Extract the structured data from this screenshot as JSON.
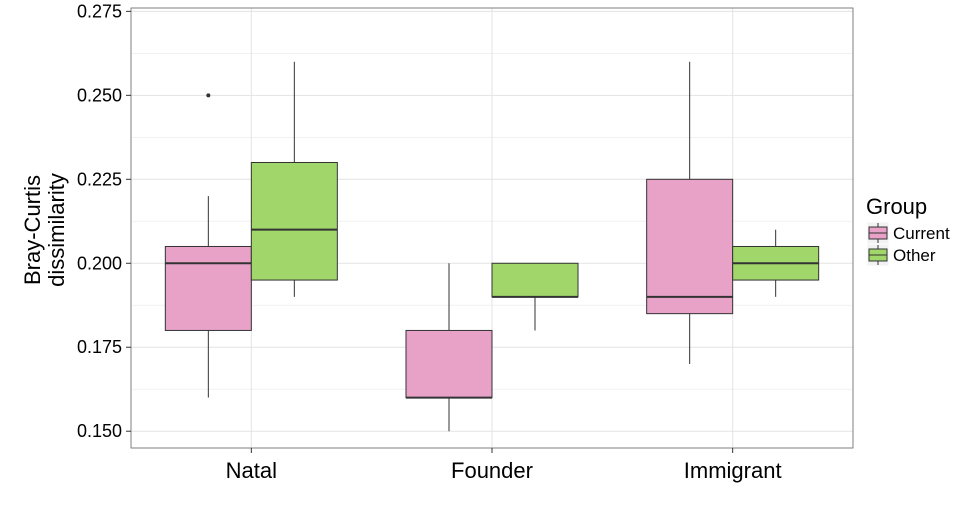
{
  "chart_data": {
    "type": "boxplot",
    "title": "",
    "xlabel": "",
    "ylabel_lines": [
      "Bray-Curtis",
      "dissimilarity"
    ],
    "categories": [
      "Natal",
      "Founder",
      "Immigrant"
    ],
    "ylim": [
      0.145,
      0.276
    ],
    "yticks": [
      0.15,
      0.175,
      0.2,
      0.225,
      0.25,
      0.275
    ],
    "ytick_labels": [
      "0.150",
      "0.175",
      "0.200",
      "0.225",
      "0.250",
      "0.275"
    ],
    "grid": true,
    "legend": {
      "title": "Group",
      "position": "right"
    },
    "series": [
      {
        "name": "Current",
        "color": "#e8a2c7",
        "boxes": [
          {
            "category": "Natal",
            "lower_whisker": 0.16,
            "q1": 0.18,
            "median": 0.2,
            "q3": 0.205,
            "upper_whisker": 0.22,
            "outliers": [
              0.25
            ]
          },
          {
            "category": "Founder",
            "lower_whisker": 0.15,
            "q1": 0.16,
            "median": 0.16,
            "q3": 0.18,
            "upper_whisker": 0.2,
            "outliers": []
          },
          {
            "category": "Immigrant",
            "lower_whisker": 0.17,
            "q1": 0.185,
            "median": 0.19,
            "q3": 0.225,
            "upper_whisker": 0.26,
            "outliers": []
          }
        ]
      },
      {
        "name": "Other",
        "color": "#a1d76a",
        "boxes": [
          {
            "category": "Natal",
            "lower_whisker": 0.19,
            "q1": 0.195,
            "median": 0.21,
            "q3": 0.23,
            "upper_whisker": 0.26,
            "outliers": []
          },
          {
            "category": "Founder",
            "lower_whisker": 0.18,
            "q1": 0.19,
            "median": 0.19,
            "q3": 0.2,
            "upper_whisker": 0.2,
            "outliers": []
          },
          {
            "category": "Immigrant",
            "lower_whisker": 0.19,
            "q1": 0.195,
            "median": 0.2,
            "q3": 0.205,
            "upper_whisker": 0.21,
            "outliers": []
          }
        ]
      }
    ]
  }
}
